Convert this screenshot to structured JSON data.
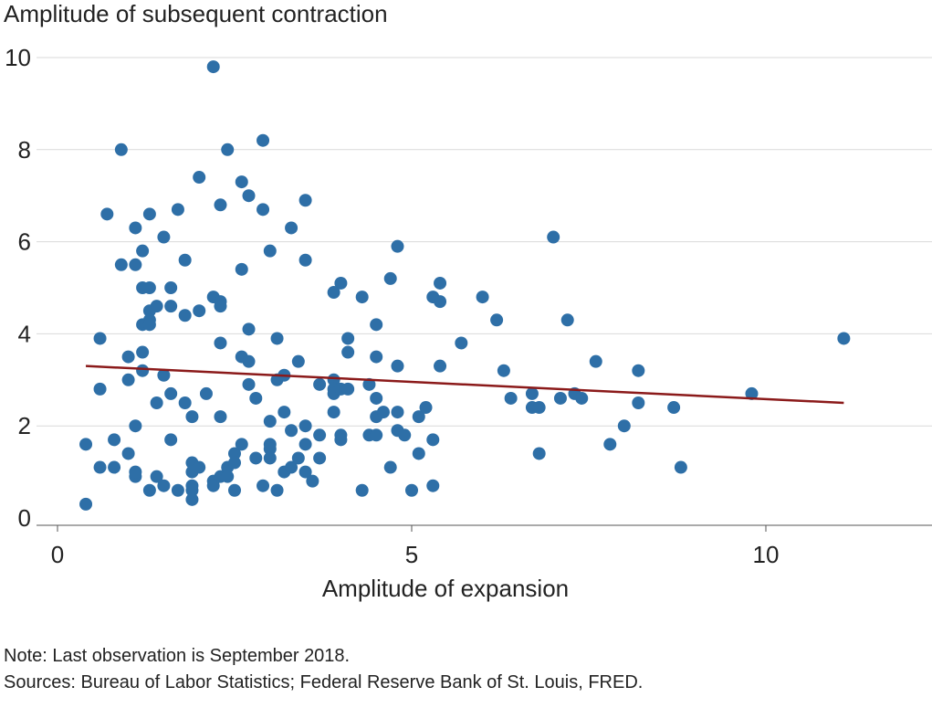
{
  "chart_data": {
    "type": "scatter",
    "ylabel": "Amplitude of subsequent contraction",
    "xlabel": "Amplitude of expansion",
    "xlim": [
      -0.3,
      12.3
    ],
    "ylim": [
      -0.15,
      10.2
    ],
    "x_ticks": [
      0,
      5,
      10
    ],
    "y_ticks": [
      0,
      2,
      4,
      6,
      8,
      10
    ],
    "grid": "horizontal",
    "colors": {
      "points": "#2e6fa7",
      "trend": "#8b1a1a",
      "grid": "#d9d9d9",
      "axis": "#555555"
    },
    "trend_line": {
      "x": [
        0.4,
        11.1
      ],
      "y": [
        3.3,
        2.5
      ]
    },
    "points": [
      [
        0.4,
        0.3
      ],
      [
        0.4,
        1.6
      ],
      [
        0.6,
        1.1
      ],
      [
        0.6,
        2.8
      ],
      [
        0.6,
        3.9
      ],
      [
        0.7,
        6.6
      ],
      [
        0.8,
        1.1
      ],
      [
        0.8,
        1.7
      ],
      [
        0.9,
        8.0
      ],
      [
        0.9,
        5.5
      ],
      [
        1.0,
        3.0
      ],
      [
        1.0,
        3.5
      ],
      [
        1.0,
        1.4
      ],
      [
        1.1,
        0.9
      ],
      [
        1.1,
        1.0
      ],
      [
        1.1,
        2.0
      ],
      [
        1.1,
        5.5
      ],
      [
        1.1,
        6.3
      ],
      [
        1.2,
        5.8
      ],
      [
        1.2,
        5.0
      ],
      [
        1.2,
        4.2
      ],
      [
        1.2,
        3.6
      ],
      [
        1.2,
        3.2
      ],
      [
        1.3,
        6.6
      ],
      [
        1.3,
        5.0
      ],
      [
        1.3,
        4.5
      ],
      [
        1.3,
        4.3
      ],
      [
        1.3,
        4.2
      ],
      [
        1.3,
        0.6
      ],
      [
        1.4,
        0.9
      ],
      [
        1.4,
        2.5
      ],
      [
        1.4,
        4.6
      ],
      [
        1.5,
        6.1
      ],
      [
        1.5,
        3.1
      ],
      [
        1.5,
        0.7
      ],
      [
        1.6,
        5.0
      ],
      [
        1.6,
        4.6
      ],
      [
        1.6,
        2.7
      ],
      [
        1.6,
        1.7
      ],
      [
        1.7,
        6.7
      ],
      [
        1.7,
        0.6
      ],
      [
        1.8,
        5.6
      ],
      [
        1.8,
        4.4
      ],
      [
        1.8,
        2.5
      ],
      [
        1.9,
        2.2
      ],
      [
        1.9,
        1.2
      ],
      [
        1.9,
        1.0
      ],
      [
        1.9,
        0.7
      ],
      [
        1.9,
        0.6
      ],
      [
        1.9,
        0.4
      ],
      [
        2.0,
        1.1
      ],
      [
        2.0,
        4.5
      ],
      [
        2.0,
        7.4
      ],
      [
        2.1,
        2.7
      ],
      [
        2.2,
        9.8
      ],
      [
        2.2,
        4.8
      ],
      [
        2.2,
        0.8
      ],
      [
        2.2,
        0.7
      ],
      [
        2.3,
        6.8
      ],
      [
        2.3,
        4.7
      ],
      [
        2.3,
        4.6
      ],
      [
        2.3,
        3.8
      ],
      [
        2.3,
        2.2
      ],
      [
        2.3,
        0.9
      ],
      [
        2.4,
        8.0
      ],
      [
        2.4,
        1.1
      ],
      [
        2.4,
        0.9
      ],
      [
        2.5,
        1.4
      ],
      [
        2.5,
        1.2
      ],
      [
        2.5,
        0.6
      ],
      [
        2.6,
        7.3
      ],
      [
        2.6,
        5.4
      ],
      [
        2.6,
        3.5
      ],
      [
        2.6,
        1.6
      ],
      [
        2.7,
        7.0
      ],
      [
        2.7,
        4.1
      ],
      [
        2.7,
        3.4
      ],
      [
        2.7,
        2.9
      ],
      [
        2.8,
        2.6
      ],
      [
        2.8,
        1.3
      ],
      [
        2.9,
        8.2
      ],
      [
        2.9,
        6.7
      ],
      [
        2.9,
        0.7
      ],
      [
        3.0,
        5.8
      ],
      [
        3.0,
        2.1
      ],
      [
        3.0,
        1.6
      ],
      [
        3.0,
        1.5
      ],
      [
        3.0,
        1.3
      ],
      [
        3.1,
        3.9
      ],
      [
        3.1,
        3.0
      ],
      [
        3.1,
        0.6
      ],
      [
        3.2,
        3.1
      ],
      [
        3.2,
        2.3
      ],
      [
        3.2,
        1.0
      ],
      [
        3.3,
        6.3
      ],
      [
        3.3,
        1.9
      ],
      [
        3.3,
        1.1
      ],
      [
        3.4,
        3.4
      ],
      [
        3.4,
        1.3
      ],
      [
        3.5,
        6.9
      ],
      [
        3.5,
        5.6
      ],
      [
        3.5,
        2.0
      ],
      [
        3.5,
        1.6
      ],
      [
        3.5,
        1.0
      ],
      [
        3.6,
        0.8
      ],
      [
        3.7,
        2.9
      ],
      [
        3.7,
        1.8
      ],
      [
        3.7,
        1.3
      ],
      [
        3.9,
        4.9
      ],
      [
        3.9,
        3.0
      ],
      [
        3.9,
        2.8
      ],
      [
        3.9,
        2.7
      ],
      [
        3.9,
        2.3
      ],
      [
        4.0,
        5.1
      ],
      [
        4.0,
        2.8
      ],
      [
        4.0,
        1.8
      ],
      [
        4.0,
        1.7
      ],
      [
        4.1,
        3.9
      ],
      [
        4.1,
        3.6
      ],
      [
        4.1,
        2.8
      ],
      [
        4.3,
        4.8
      ],
      [
        4.3,
        0.6
      ],
      [
        4.4,
        2.9
      ],
      [
        4.4,
        1.8
      ],
      [
        4.5,
        4.2
      ],
      [
        4.5,
        3.5
      ],
      [
        4.5,
        2.6
      ],
      [
        4.5,
        2.2
      ],
      [
        4.5,
        1.8
      ],
      [
        4.6,
        2.3
      ],
      [
        4.7,
        5.2
      ],
      [
        4.7,
        1.1
      ],
      [
        4.8,
        5.9
      ],
      [
        4.8,
        3.3
      ],
      [
        4.8,
        2.3
      ],
      [
        4.8,
        1.9
      ],
      [
        4.9,
        1.8
      ],
      [
        5.0,
        0.6
      ],
      [
        5.1,
        2.2
      ],
      [
        5.1,
        1.4
      ],
      [
        5.2,
        2.4
      ],
      [
        5.3,
        4.8
      ],
      [
        5.3,
        1.7
      ],
      [
        5.3,
        0.7
      ],
      [
        5.4,
        5.1
      ],
      [
        5.4,
        4.7
      ],
      [
        5.4,
        3.3
      ],
      [
        5.7,
        3.8
      ],
      [
        6.0,
        4.8
      ],
      [
        6.2,
        4.3
      ],
      [
        6.3,
        3.2
      ],
      [
        6.4,
        2.6
      ],
      [
        6.7,
        2.7
      ],
      [
        6.7,
        2.4
      ],
      [
        6.8,
        2.4
      ],
      [
        6.8,
        1.4
      ],
      [
        7.0,
        6.1
      ],
      [
        7.1,
        2.6
      ],
      [
        7.2,
        4.3
      ],
      [
        7.3,
        2.7
      ],
      [
        7.4,
        2.6
      ],
      [
        7.6,
        3.4
      ],
      [
        7.8,
        1.6
      ],
      [
        8.0,
        2.0
      ],
      [
        8.2,
        3.2
      ],
      [
        8.2,
        2.5
      ],
      [
        8.7,
        2.4
      ],
      [
        8.8,
        1.1
      ],
      [
        9.8,
        2.7
      ],
      [
        11.1,
        3.9
      ]
    ]
  },
  "notes": {
    "note": "Note: Last observation is September 2018.",
    "sources": "Sources: Bureau of Labor Statistics; Federal Reserve Bank of St. Louis, FRED."
  }
}
